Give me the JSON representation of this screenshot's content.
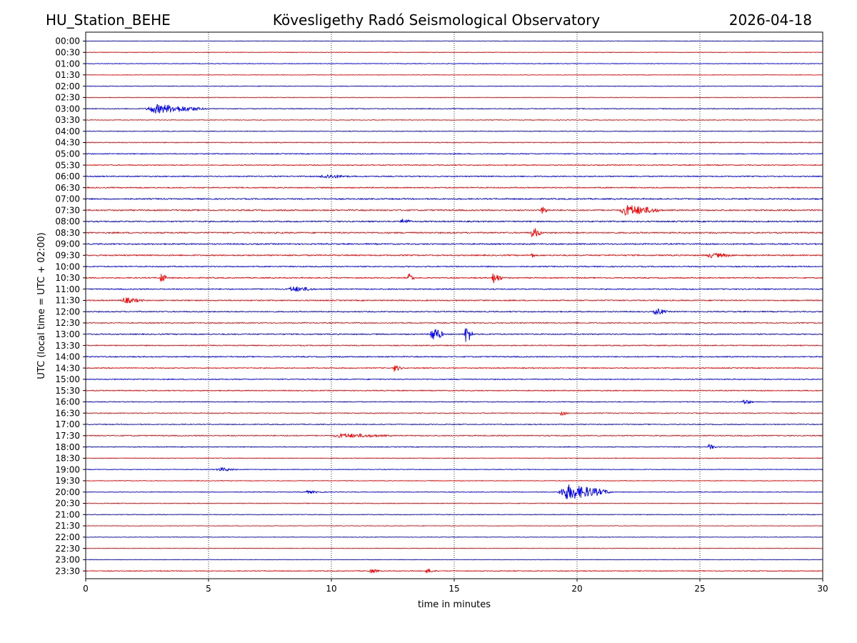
{
  "chart_data": {
    "type": "line",
    "title_left": "HU_Station_BEHE",
    "title_center": "Kövesligethy Radó Seismological Observatory",
    "title_right": "2026-04-18",
    "xlabel": "time in minutes",
    "ylabel": "UTC (local time = UTC + 02:00)",
    "xlim": [
      0,
      30
    ],
    "x_ticks": [
      "0",
      "5",
      "10",
      "15",
      "20",
      "25",
      "30"
    ],
    "grid_x": [
      5,
      10,
      15,
      20,
      25
    ],
    "row_labels": [
      "00:00",
      "00:30",
      "01:00",
      "01:30",
      "02:00",
      "02:30",
      "03:00",
      "03:30",
      "04:00",
      "04:30",
      "05:00",
      "05:30",
      "06:00",
      "06:30",
      "07:00",
      "07:30",
      "08:00",
      "08:30",
      "09:00",
      "09:30",
      "10:00",
      "10:30",
      "11:00",
      "11:30",
      "12:00",
      "12:30",
      "13:00",
      "13:30",
      "14:00",
      "14:30",
      "15:00",
      "15:30",
      "16:00",
      "16:30",
      "17:00",
      "17:30",
      "18:00",
      "18:30",
      "19:00",
      "19:30",
      "20:00",
      "20:30",
      "21:00",
      "21:30",
      "22:00",
      "22:30",
      "23:00",
      "23:30"
    ],
    "series_colors": [
      "#0000ff",
      "#ff0000"
    ],
    "row_noise": [
      0.35,
      0.4,
      0.45,
      0.35,
      0.45,
      0.35,
      0.55,
      0.45,
      0.45,
      0.55,
      0.65,
      0.65,
      0.75,
      0.75,
      0.85,
      0.85,
      0.85,
      0.85,
      0.85,
      0.85,
      0.75,
      0.75,
      0.75,
      0.75,
      0.75,
      0.65,
      0.75,
      0.65,
      0.75,
      0.65,
      0.65,
      0.65,
      0.55,
      0.55,
      0.55,
      0.65,
      0.55,
      0.45,
      0.45,
      0.45,
      0.45,
      0.45,
      0.45,
      0.35,
      0.35,
      0.35,
      0.35,
      0.55
    ],
    "events": [
      {
        "row": 6,
        "start": 2.4,
        "end": 5.0,
        "amplitude": 7
      },
      {
        "row": 12,
        "start": 9.5,
        "end": 10.8,
        "amplitude": 3
      },
      {
        "row": 15,
        "start": 18.5,
        "end": 18.9,
        "amplitude": 5
      },
      {
        "row": 15,
        "start": 21.7,
        "end": 23.5,
        "amplitude": 8
      },
      {
        "row": 16,
        "start": 12.8,
        "end": 13.3,
        "amplitude": 4
      },
      {
        "row": 17,
        "start": 18.1,
        "end": 18.6,
        "amplitude": 8
      },
      {
        "row": 19,
        "start": 18.1,
        "end": 18.3,
        "amplitude": 4
      },
      {
        "row": 19,
        "start": 25.2,
        "end": 26.5,
        "amplitude": 3
      },
      {
        "row": 21,
        "start": 3.0,
        "end": 3.3,
        "amplitude": 9
      },
      {
        "row": 21,
        "start": 13.1,
        "end": 13.4,
        "amplitude": 7
      },
      {
        "row": 21,
        "start": 16.5,
        "end": 17.0,
        "amplitude": 8
      },
      {
        "row": 22,
        "start": 8.2,
        "end": 9.4,
        "amplitude": 4
      },
      {
        "row": 23,
        "start": 1.4,
        "end": 2.4,
        "amplitude": 4
      },
      {
        "row": 24,
        "start": 23.1,
        "end": 23.7,
        "amplitude": 5
      },
      {
        "row": 26,
        "start": 14.0,
        "end": 14.6,
        "amplitude": 12
      },
      {
        "row": 26,
        "start": 15.4,
        "end": 15.8,
        "amplitude": 14
      },
      {
        "row": 29,
        "start": 12.5,
        "end": 12.9,
        "amplitude": 5
      },
      {
        "row": 32,
        "start": 26.7,
        "end": 27.2,
        "amplitude": 4
      },
      {
        "row": 33,
        "start": 19.3,
        "end": 19.7,
        "amplitude": 4
      },
      {
        "row": 35,
        "start": 10.0,
        "end": 12.5,
        "amplitude": 3
      },
      {
        "row": 36,
        "start": 25.3,
        "end": 25.7,
        "amplitude": 4
      },
      {
        "row": 38,
        "start": 5.3,
        "end": 6.2,
        "amplitude": 3
      },
      {
        "row": 40,
        "start": 19.2,
        "end": 21.5,
        "amplitude": 12
      },
      {
        "row": 40,
        "start": 8.8,
        "end": 9.8,
        "amplitude": 2
      },
      {
        "row": 47,
        "start": 13.8,
        "end": 14.3,
        "amplitude": 3
      },
      {
        "row": 47,
        "start": 11.5,
        "end": 12.0,
        "amplitude": 3
      }
    ]
  }
}
